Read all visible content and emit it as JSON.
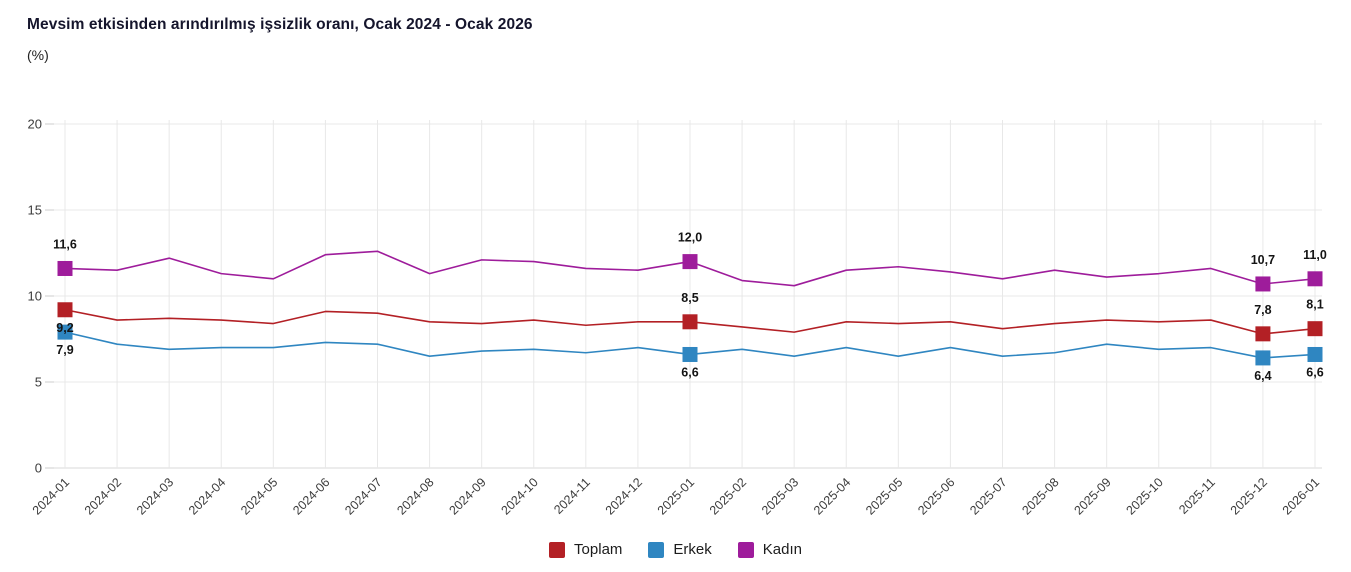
{
  "chart_data": {
    "type": "line",
    "title": "Mevsim etkisinden arındırılmış işsizlik oranı, Ocak 2024 - Ocak 2026",
    "subtitle": "(%)",
    "xlabel": "",
    "ylabel": "",
    "ylim": [
      0,
      20
    ],
    "y_ticks": [
      0,
      5,
      10,
      15,
      20
    ],
    "grid": true,
    "legend_position": "bottom-center",
    "x_labels": [
      "2024-01",
      "2024-02",
      "2024-03",
      "2024-04",
      "2024-05",
      "2024-06",
      "2024-07",
      "2024-08",
      "2024-09",
      "2024-10",
      "2024-11",
      "2024-12",
      "2025-01",
      "2025-02",
      "2025-03",
      "2025-04",
      "2025-05",
      "2025-06",
      "2025-07",
      "2025-08",
      "2025-09",
      "2025-10",
      "2025-11",
      "2025-12",
      "2026-01"
    ],
    "marker_indices": [
      0,
      12,
      23,
      24
    ],
    "series": [
      {
        "name": "Toplam",
        "color": "#b32025",
        "values": [
          9.2,
          8.6,
          8.7,
          8.6,
          8.4,
          9.1,
          9.0,
          8.5,
          8.4,
          8.6,
          8.3,
          8.5,
          8.5,
          8.2,
          7.9,
          8.5,
          8.4,
          8.5,
          8.1,
          8.4,
          8.6,
          8.5,
          8.6,
          7.8,
          8.1
        ]
      },
      {
        "name": "Erkek",
        "color": "#2f86c1",
        "values": [
          7.9,
          7.2,
          6.9,
          7.0,
          7.0,
          7.3,
          7.2,
          6.5,
          6.8,
          6.9,
          6.7,
          7.0,
          6.6,
          6.9,
          6.5,
          7.0,
          6.5,
          7.0,
          6.5,
          6.7,
          7.2,
          6.9,
          7.0,
          6.4,
          6.6
        ]
      },
      {
        "name": "Kadın",
        "color": "#9e1c9b",
        "values": [
          11.6,
          11.5,
          12.2,
          11.3,
          11.0,
          12.4,
          12.6,
          11.3,
          12.1,
          12.0,
          11.6,
          11.5,
          12.0,
          10.9,
          10.6,
          11.5,
          11.7,
          11.4,
          11.0,
          11.5,
          11.1,
          11.3,
          11.6,
          10.7,
          11.0
        ]
      }
    ],
    "point_labels": [
      {
        "series": 0,
        "index": 0,
        "text": "9,2",
        "position": "below"
      },
      {
        "series": 0,
        "index": 12,
        "text": "8,5",
        "position": "above"
      },
      {
        "series": 0,
        "index": 23,
        "text": "7,8",
        "position": "above"
      },
      {
        "series": 0,
        "index": 24,
        "text": "8,1",
        "position": "above"
      },
      {
        "series": 1,
        "index": 0,
        "text": "7,9",
        "position": "below"
      },
      {
        "series": 1,
        "index": 12,
        "text": "6,6",
        "position": "below"
      },
      {
        "series": 1,
        "index": 23,
        "text": "6,4",
        "position": "below"
      },
      {
        "series": 1,
        "index": 24,
        "text": "6,6",
        "position": "below"
      },
      {
        "series": 2,
        "index": 0,
        "text": "11,6",
        "position": "above"
      },
      {
        "series": 2,
        "index": 12,
        "text": "12,0",
        "position": "above"
      },
      {
        "series": 2,
        "index": 23,
        "text": "10,7",
        "position": "above"
      },
      {
        "series": 2,
        "index": 24,
        "text": "11,0",
        "position": "above"
      }
    ],
    "colors": {
      "grid": "#e8e8e8",
      "zero_line": "#d9d9d9",
      "tick": "#cccccc",
      "axis_text": "#3c3c3c",
      "data_label": "#141414"
    }
  }
}
